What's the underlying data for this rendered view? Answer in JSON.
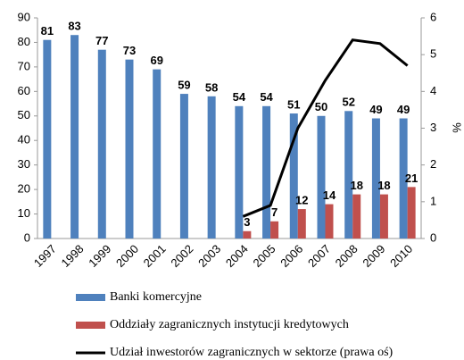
{
  "chart_data": {
    "type": "bar",
    "categories": [
      "1997",
      "1998",
      "1999",
      "2000",
      "2001",
      "2002",
      "2003",
      "2004",
      "2005",
      "2006",
      "2007",
      "2008",
      "2009",
      "2010"
    ],
    "series": [
      {
        "name": "Banki komercyjne",
        "color": "#4f81bd",
        "values": [
          81,
          83,
          77,
          73,
          69,
          59,
          58,
          54,
          54,
          51,
          50,
          52,
          49,
          49
        ]
      },
      {
        "name": "Oddziały zagranicznych instytucji kredytowych",
        "color": "#c0504d",
        "values": [
          null,
          null,
          null,
          null,
          null,
          null,
          null,
          3,
          7,
          12,
          14,
          18,
          18,
          21
        ]
      },
      {
        "name": "Udział inwestorów zagranicznych w sektorze (prawa oś)",
        "color": "#000000",
        "type": "line",
        "axis": "y2",
        "values": [
          null,
          null,
          null,
          null,
          null,
          null,
          null,
          0.6,
          0.9,
          3.0,
          4.3,
          5.4,
          5.3,
          4.7
        ]
      }
    ],
    "ylim": [
      0,
      90
    ],
    "yticks": [
      0,
      10,
      20,
      30,
      40,
      50,
      60,
      70,
      80,
      90
    ],
    "y2lim": [
      0,
      6
    ],
    "y2ticks": [
      0,
      1,
      2,
      3,
      4,
      5,
      6
    ],
    "y2label": "%",
    "grid": false,
    "data_labels": true,
    "legend": "bottom"
  }
}
